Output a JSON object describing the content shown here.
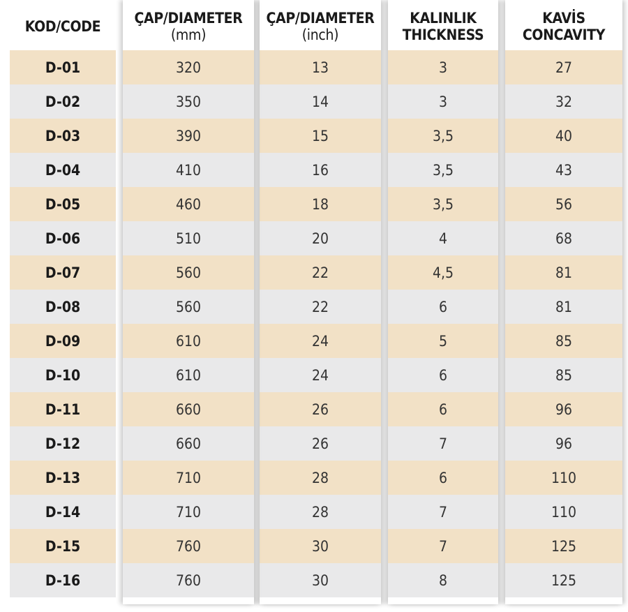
{
  "columns": [
    {
      "key": "code",
      "header_line1": "KOD/CODE",
      "header_line2": ""
    },
    {
      "key": "mm",
      "header_line1": "ÇAP/DIAMETER",
      "header_line2": "(mm)"
    },
    {
      "key": "inch",
      "header_line1": "ÇAP/DIAMETER",
      "header_line2": "(inch)"
    },
    {
      "key": "thickness",
      "header_line1": "KALINLIK",
      "header_line2": "THICKNESS"
    },
    {
      "key": "concavity",
      "header_line1": "KAVİS",
      "header_line2": "CONCAVITY"
    }
  ],
  "rows": [
    {
      "code": "D-01",
      "mm": "320",
      "inch": "13",
      "thickness": "3",
      "concavity": "27"
    },
    {
      "code": "D-02",
      "mm": "350",
      "inch": "14",
      "thickness": "3",
      "concavity": "32"
    },
    {
      "code": "D-03",
      "mm": "390",
      "inch": "15",
      "thickness": "3,5",
      "concavity": "40"
    },
    {
      "code": "D-04",
      "mm": "410",
      "inch": "16",
      "thickness": "3,5",
      "concavity": "43"
    },
    {
      "code": "D-05",
      "mm": "460",
      "inch": "18",
      "thickness": "3,5",
      "concavity": "56"
    },
    {
      "code": "D-06",
      "mm": "510",
      "inch": "20",
      "thickness": "4",
      "concavity": "68"
    },
    {
      "code": "D-07",
      "mm": "560",
      "inch": "22",
      "thickness": "4,5",
      "concavity": "81"
    },
    {
      "code": "D-08",
      "mm": "560",
      "inch": "22",
      "thickness": "6",
      "concavity": "81"
    },
    {
      "code": "D-09",
      "mm": "610",
      "inch": "24",
      "thickness": "5",
      "concavity": "85"
    },
    {
      "code": "D-10",
      "mm": "610",
      "inch": "24",
      "thickness": "6",
      "concavity": "85"
    },
    {
      "code": "D-11",
      "mm": "660",
      "inch": "26",
      "thickness": "6",
      "concavity": "96"
    },
    {
      "code": "D-12",
      "mm": "660",
      "inch": "26",
      "thickness": "7",
      "concavity": "96"
    },
    {
      "code": "D-13",
      "mm": "710",
      "inch": "28",
      "thickness": "6",
      "concavity": "110"
    },
    {
      "code": "D-14",
      "mm": "710",
      "inch": "28",
      "thickness": "7",
      "concavity": "110"
    },
    {
      "code": "D-15",
      "mm": "760",
      "inch": "30",
      "thickness": "7",
      "concavity": "125"
    },
    {
      "code": "D-16",
      "mm": "760",
      "inch": "30",
      "thickness": "8",
      "concavity": "125"
    }
  ],
  "colors": {
    "odd_row": "#f2e1c6",
    "even_row": "#e9e9ea",
    "header_text": "#1a1a1a",
    "cell_text": "#333333"
  }
}
